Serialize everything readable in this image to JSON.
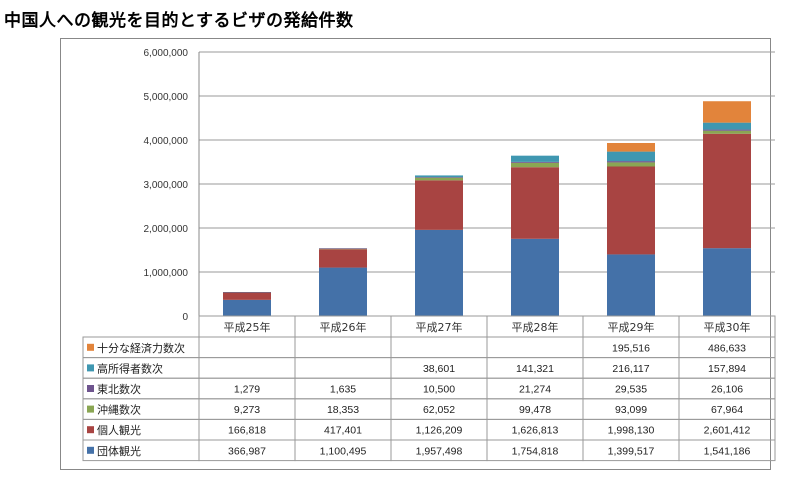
{
  "page": {
    "title": "中国人への観光を目的とするビザの発給件数"
  },
  "chart_data": {
    "type": "bar",
    "stacked": true,
    "title": "中国人への観光を目的とするビザの発給件数",
    "xlabel": "",
    "ylabel": "",
    "ylim": [
      0,
      6000000
    ],
    "yticks": [
      0,
      1000000,
      2000000,
      3000000,
      4000000,
      5000000,
      6000000
    ],
    "ytick_labels": [
      "0",
      "1,000,000",
      "2,000,000",
      "3,000,000",
      "4,000,000",
      "5,000,000",
      "6,000,000"
    ],
    "grid": true,
    "legend": "data-table-left",
    "categories": [
      "平成25年",
      "平成26年",
      "平成27年",
      "平成28年",
      "平成29年",
      "平成30年"
    ],
    "series": [
      {
        "name": "団体観光",
        "color": "#4471A8",
        "values": [
          366987,
          1100495,
          1957498,
          1754818,
          1399517,
          1541186
        ],
        "labels": [
          "366,987",
          "1,100,495",
          "1,957,498",
          "1,754,818",
          "1,399,517",
          "1,541,186"
        ]
      },
      {
        "name": "個人観光",
        "color": "#A84442",
        "values": [
          166818,
          417401,
          1126209,
          1626813,
          1998130,
          2601412
        ],
        "labels": [
          "166,818",
          "417,401",
          "1,126,209",
          "1,626,813",
          "1,998,130",
          "2,601,412"
        ]
      },
      {
        "name": "沖縄数次",
        "color": "#8AA653",
        "values": [
          9273,
          18353,
          62052,
          99478,
          93099,
          67964
        ],
        "labels": [
          "9,273",
          "18,353",
          "62,052",
          "99,478",
          "93,099",
          "67,964"
        ]
      },
      {
        "name": "東北数次",
        "color": "#6E548E",
        "values": [
          1279,
          1635,
          10500,
          21274,
          29535,
          26106
        ],
        "labels": [
          "1,279",
          "1,635",
          "10,500",
          "21,274",
          "29,535",
          "26,106"
        ]
      },
      {
        "name": "高所得者数次",
        "color": "#3F97B1",
        "values": [
          null,
          null,
          38601,
          141321,
          216117,
          157894
        ],
        "labels": [
          "",
          "",
          "38,601",
          "141,321",
          "216,117",
          "157,894"
        ]
      },
      {
        "name": "十分な経済力数次",
        "color": "#E2843B",
        "values": [
          null,
          null,
          null,
          null,
          195516,
          486633
        ],
        "labels": [
          "",
          "",
          "",
          "",
          "195,516",
          "486,633"
        ]
      }
    ],
    "table_row_order": [
      "十分な経済力数次",
      "高所得者数次",
      "東北数次",
      "沖縄数次",
      "個人観光",
      "団体観光"
    ]
  }
}
